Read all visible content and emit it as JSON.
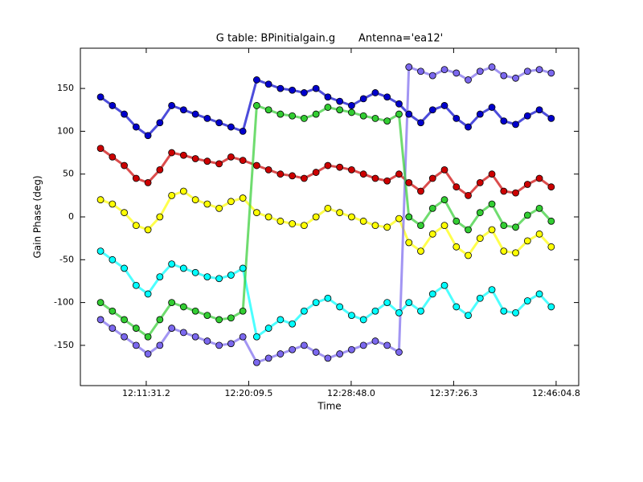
{
  "chart_data": {
    "type": "scatter",
    "title": "G table: BPinitialgain.g       Antenna='ea12'",
    "x_label": "Time",
    "y_label": "Gain Phase (deg)",
    "xlim": [
      43558,
      46079
    ],
    "ylim": [
      -197,
      197
    ],
    "xticks": [
      {
        "value": 43891.2,
        "label": "12:11:31.2"
      },
      {
        "value": 44409.5,
        "label": "12:20:09.5"
      },
      {
        "value": 44928,
        "label": "12:28:48.0"
      },
      {
        "value": 45446.3,
        "label": "12:37:26.3"
      },
      {
        "value": 45964.8,
        "label": "12:46:04.8"
      }
    ],
    "yticks": [
      -150,
      -100,
      -50,
      0,
      50,
      100,
      150
    ],
    "grid": false,
    "x": [
      43660,
      43720,
      43780,
      43840,
      43900,
      43960,
      44020,
      44080,
      44140,
      44200,
      44260,
      44320,
      44380,
      44450,
      44510,
      44570,
      44630,
      44690,
      44750,
      44810,
      44870,
      44930,
      44990,
      45050,
      45110,
      45170,
      45220,
      45280,
      45340,
      45400,
      45460,
      45520,
      45580,
      45640,
      45700,
      45760,
      45820,
      45880,
      45940
    ],
    "series": [
      {
        "color": "#0000cc",
        "values": [
          140,
          130,
          120,
          105,
          95,
          110,
          130,
          125,
          120,
          115,
          110,
          105,
          100,
          160,
          155,
          150,
          148,
          145,
          150,
          140,
          135,
          130,
          138,
          145,
          140,
          132,
          120,
          110,
          125,
          130,
          115,
          105,
          120,
          128,
          112,
          108,
          118,
          125,
          115
        ]
      },
      {
        "color": "#cc0000",
        "values": [
          80,
          70,
          60,
          45,
          40,
          55,
          75,
          72,
          68,
          65,
          62,
          70,
          66,
          60,
          55,
          50,
          48,
          45,
          52,
          60,
          58,
          55,
          50,
          45,
          42,
          50,
          40,
          30,
          45,
          55,
          35,
          25,
          40,
          50,
          30,
          28,
          38,
          45,
          35
        ]
      },
      {
        "color": "#ffff00",
        "values": [
          20,
          15,
          5,
          -10,
          -15,
          0,
          25,
          30,
          20,
          15,
          10,
          18,
          22,
          5,
          0,
          -5,
          -8,
          -10,
          0,
          10,
          5,
          0,
          -5,
          -10,
          -12,
          -2,
          -30,
          -40,
          -20,
          -10,
          -35,
          -45,
          -25,
          -15,
          -40,
          -42,
          -28,
          -20,
          -35
        ]
      },
      {
        "color": "#00ffff",
        "values": [
          -40,
          -50,
          -60,
          -80,
          -90,
          -70,
          -55,
          -60,
          -65,
          -70,
          -72,
          -68,
          -60,
          -140,
          -130,
          -120,
          -125,
          -110,
          -100,
          -95,
          -105,
          -115,
          -120,
          -110,
          -100,
          -112,
          -100,
          -110,
          -90,
          -80,
          -105,
          -115,
          -95,
          -85,
          -110,
          -112,
          -98,
          -90,
          -105
        ]
      },
      {
        "color": "#7b68ee",
        "values": [
          -120,
          -130,
          -140,
          -150,
          -160,
          -150,
          -130,
          -135,
          -140,
          -145,
          -150,
          -148,
          -140,
          -170,
          -165,
          -160,
          -155,
          -150,
          -158,
          -165,
          -160,
          -155,
          -150,
          -145,
          -150,
          -158,
          175,
          170,
          165,
          172,
          168,
          160,
          170,
          175,
          165,
          162,
          170,
          172,
          168
        ]
      },
      {
        "color": "#32cd32",
        "values": [
          -100,
          -110,
          -120,
          -130,
          -140,
          -120,
          -100,
          -105,
          -110,
          -115,
          -120,
          -118,
          -110,
          130,
          125,
          120,
          118,
          115,
          120,
          128,
          125,
          122,
          118,
          115,
          112,
          120,
          0,
          -10,
          10,
          20,
          -5,
          -15,
          5,
          15,
          -10,
          -12,
          2,
          10,
          -5
        ]
      }
    ]
  }
}
